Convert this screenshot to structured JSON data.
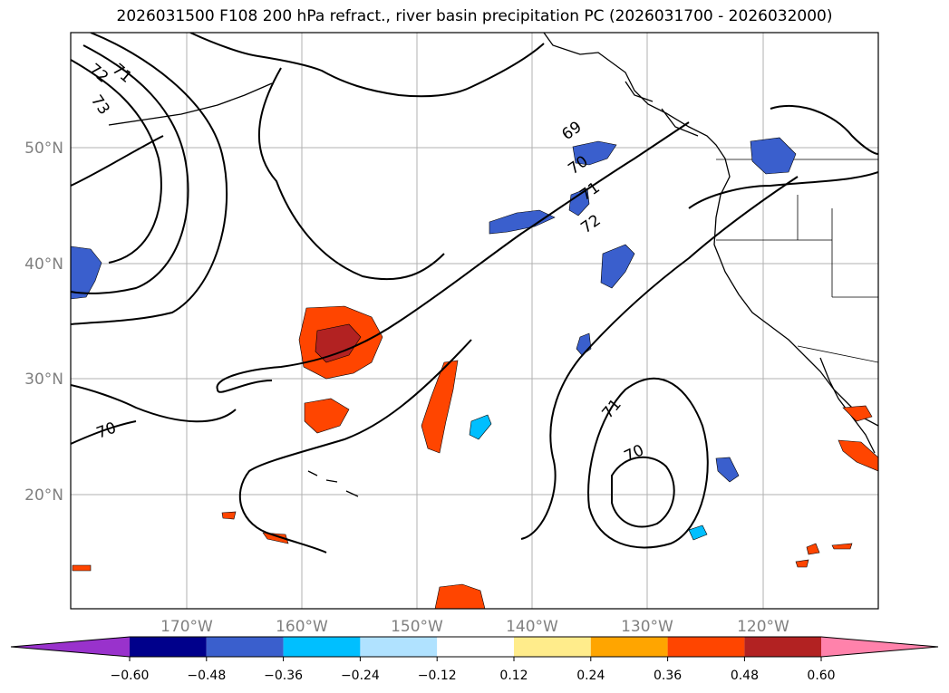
{
  "title": "2026031500 F108 200 hPa refract., river basin precipitation PC (2026031700 - 2026032000)",
  "lat_labels": [
    "50°N",
    "40°N",
    "30°N",
    "20°N"
  ],
  "lon_labels": [
    "170°W",
    "160°W",
    "150°W",
    "140°W",
    "130°W",
    "120°W"
  ],
  "contour_labels": [
    "71",
    "72",
    "73",
    "69",
    "70",
    "71",
    "72",
    "70",
    "71",
    "70"
  ],
  "colorbar": {
    "colors": [
      "#9932cc",
      "#00008b",
      "#3a5fcd",
      "#00bfff",
      "#b0e2ff",
      "#ffffff",
      "#ffec8b",
      "#ffa500",
      "#ff4500",
      "#b22222",
      "#ff82ab"
    ],
    "ticks": [
      "−0.60",
      "−0.48",
      "−0.36",
      "−0.24",
      "−0.12",
      "0.12",
      "0.24",
      "0.36",
      "0.48",
      "0.60"
    ]
  }
}
